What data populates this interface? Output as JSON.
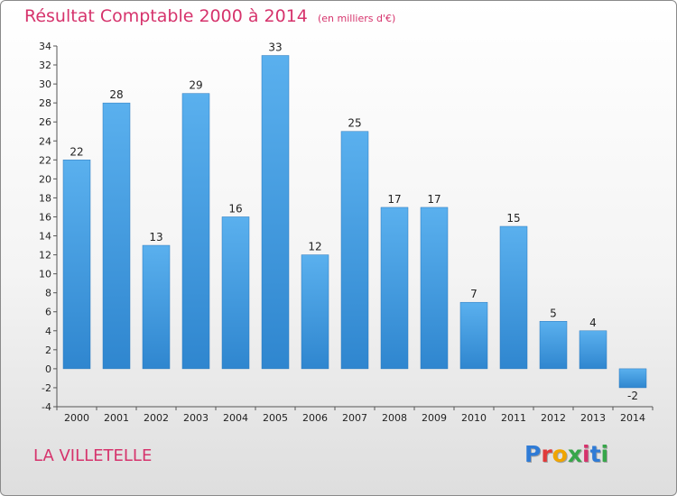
{
  "page": {
    "title": "Résultat Comptable 2000 à 2014",
    "unit": "(en milliers d'€)",
    "commune": "LA VILLETELLE",
    "logo_letters": [
      "P",
      "r",
      "o",
      "x",
      "i",
      "t",
      "i"
    ],
    "logo_colors": [
      "#2f7bd6",
      "#e03a3a",
      "#f0a500",
      "#37a64a",
      "#d6336c",
      "#2f7bd6",
      "#37a64a"
    ]
  },
  "chart_data": {
    "type": "bar",
    "title": "Résultat Comptable 2000 à 2014",
    "subtitle": "(en milliers d'€)",
    "xlabel": "",
    "ylabel": "",
    "categories": [
      "2000",
      "2001",
      "2002",
      "2003",
      "2004",
      "2005",
      "2006",
      "2007",
      "2008",
      "2009",
      "2010",
      "2011",
      "2012",
      "2013",
      "2014"
    ],
    "values": [
      22,
      28,
      13,
      29,
      16,
      33,
      12,
      25,
      17,
      17,
      7,
      15,
      5,
      4,
      -2
    ],
    "ylim": [
      -4,
      34
    ],
    "yticks": [
      -4,
      -2,
      0,
      2,
      4,
      6,
      8,
      10,
      12,
      14,
      16,
      18,
      20,
      22,
      24,
      26,
      28,
      30,
      32,
      34
    ],
    "grid": false,
    "bar_color": "#4aa3e6"
  }
}
